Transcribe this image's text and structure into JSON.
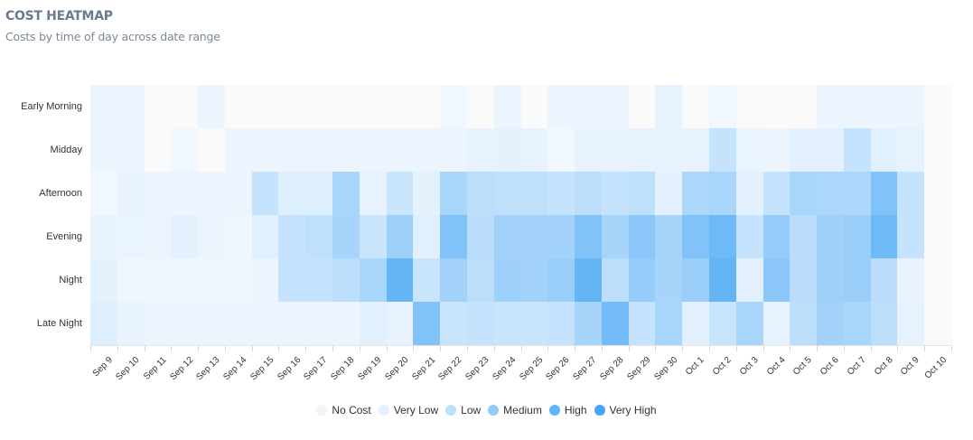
{
  "header": {
    "title": "COST HEATMAP",
    "subtitle": "Costs by time of day across date range"
  },
  "legend": [
    {
      "label": "No Cost",
      "color": "#f3f4f6"
    },
    {
      "label": "Very Low",
      "color": "#e3f0fd"
    },
    {
      "label": "Low",
      "color": "#bde0fb"
    },
    {
      "label": "Medium",
      "color": "#90cbf9"
    },
    {
      "label": "High",
      "color": "#64b5f6"
    },
    {
      "label": "Very High",
      "color": "#42a5f5"
    }
  ],
  "chart_data": {
    "type": "heatmap",
    "title": "COST HEATMAP",
    "subtitle": "Costs by time of day across date range",
    "xlabel": "",
    "ylabel": "",
    "x": [
      "Sep 9",
      "Sep 10",
      "Sep 11",
      "Sep 12",
      "Sep 13",
      "Sep 14",
      "Sep 15",
      "Sep 16",
      "Sep 17",
      "Sep 18",
      "Sep 19",
      "Sep 20",
      "Sep 21",
      "Sep 22",
      "Sep 23",
      "Sep 24",
      "Sep 25",
      "Sep 26",
      "Sep 27",
      "Sep 28",
      "Sep 29",
      "Sep 30",
      "Oct 1",
      "Oct 2",
      "Oct 3",
      "Oct 4",
      "Oct 5",
      "Oct 6",
      "Oct 7",
      "Oct 8",
      "Oct 9",
      "Oct 10"
    ],
    "y": [
      "Early Morning",
      "Midday",
      "Afternoon",
      "Evening",
      "Night",
      "Late Night"
    ],
    "value_scale": "relative intensity 0 (no cost) to 10 (very high)",
    "values": [
      [
        1,
        1,
        0,
        0,
        1,
        0,
        0,
        0,
        0,
        0,
        0,
        0,
        0,
        0.8,
        0,
        1,
        0,
        1,
        1,
        1,
        0,
        1.3,
        0,
        0.8,
        0,
        0,
        0,
        1,
        1,
        1,
        1,
        0
      ],
      [
        1,
        1,
        0,
        0.8,
        0,
        1,
        1,
        1,
        1,
        1,
        1,
        1,
        1,
        1,
        1.3,
        1.4,
        1.3,
        0.8,
        1.2,
        1.2,
        1.3,
        1.3,
        1.2,
        3,
        1.1,
        1,
        1.5,
        1.5,
        3,
        1.6,
        1.3,
        0
      ],
      [
        0.8,
        1.2,
        1,
        1,
        1,
        1,
        3,
        1.8,
        1.8,
        4.5,
        1.3,
        2.8,
        1.4,
        4.5,
        3.5,
        3.3,
        3.3,
        3,
        3.5,
        3,
        3.3,
        1.5,
        4.3,
        4.5,
        1.5,
        3,
        4.5,
        4.3,
        4.3,
        6.5,
        3,
        0
      ],
      [
        1.2,
        1.1,
        1,
        1.5,
        1,
        0.9,
        1.6,
        3,
        3.2,
        4.6,
        2.8,
        5,
        1.6,
        6.5,
        3.6,
        4.8,
        4.8,
        4.8,
        6.5,
        4.6,
        6,
        4.6,
        6.5,
        7.5,
        3,
        5.5,
        3.6,
        5,
        5.3,
        7.5,
        3,
        0
      ],
      [
        1.4,
        0.9,
        0.9,
        0.9,
        0.9,
        0.9,
        1,
        3,
        3,
        3.5,
        4.5,
        8,
        2.8,
        4.8,
        3.5,
        5,
        4.8,
        5.3,
        8,
        3.5,
        5.5,
        4.6,
        5.3,
        8,
        1.5,
        6,
        3.6,
        5,
        5.3,
        3.6,
        1.2,
        0
      ],
      [
        1.8,
        1.2,
        1,
        1,
        1,
        1,
        1,
        1,
        1,
        1,
        1.6,
        1.2,
        6.5,
        2.8,
        3,
        2.8,
        2.8,
        3,
        4.6,
        7.2,
        3,
        4.5,
        1.5,
        2.8,
        4.5,
        1.3,
        3.5,
        4.8,
        4.5,
        3.5,
        1.3,
        0
      ]
    ],
    "legend": [
      "No Cost",
      "Very Low",
      "Low",
      "Medium",
      "High",
      "Very High"
    ],
    "legend_position": "bottom",
    "grid": false
  }
}
